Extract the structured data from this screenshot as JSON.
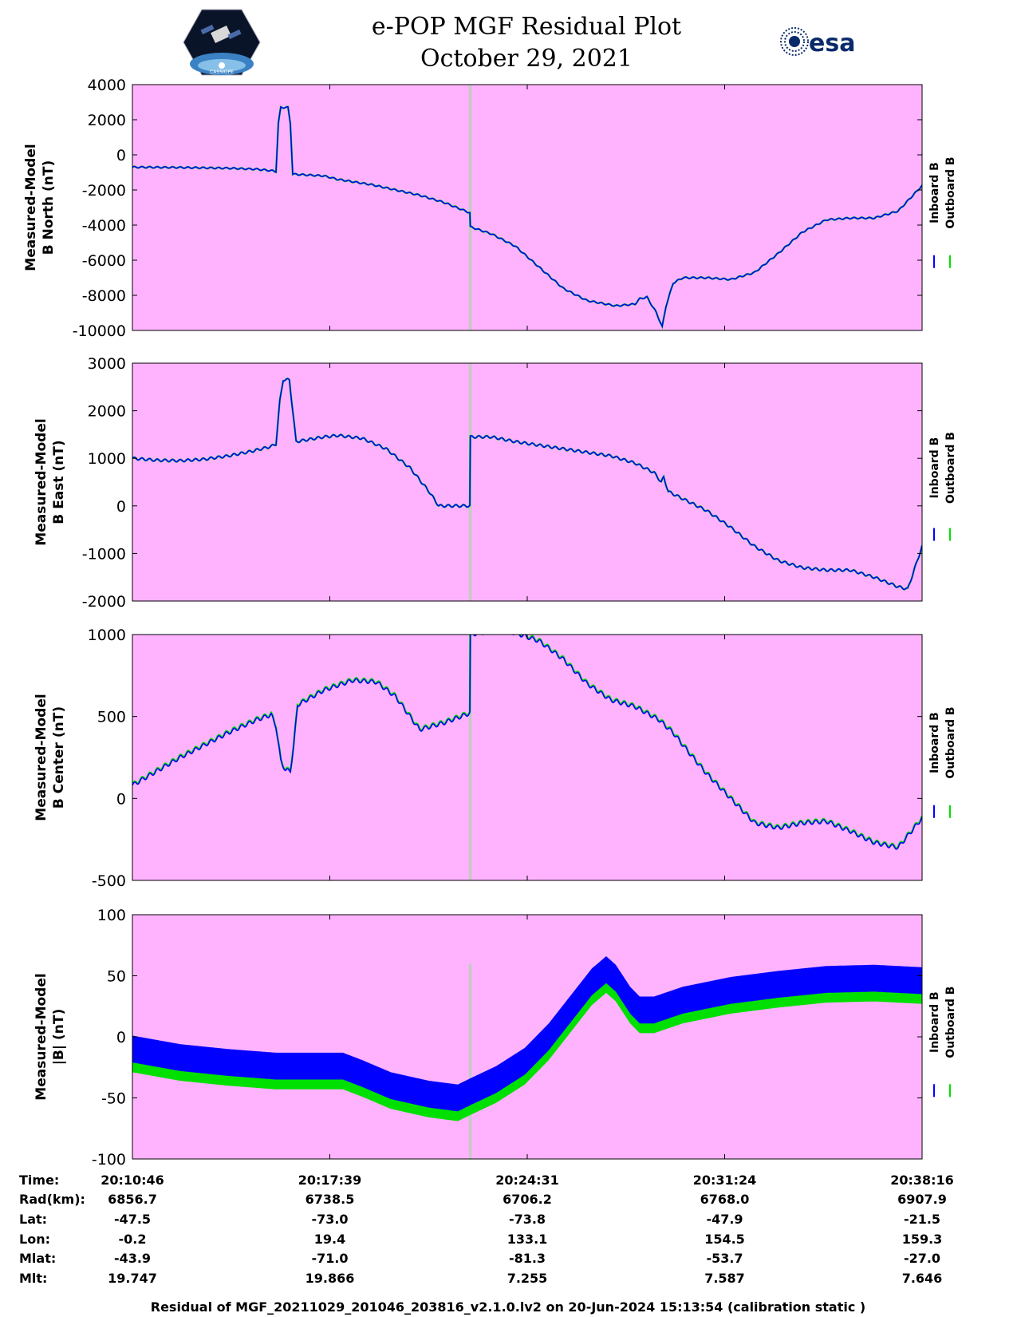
{
  "header": {
    "title_line1": "e-POP MGF Residual Plot",
    "title_line2": "October 29, 2021",
    "left_logo_text": "CASSIOPE",
    "right_logo_text": "esa"
  },
  "colors": {
    "background": "#ffb3ff",
    "inboard": "#0000ff",
    "outboard": "#00e000",
    "gap_line": "#c8c8c8"
  },
  "chart_data": {
    "type": "line",
    "x_tick_labels": [
      "20:10:46",
      "20:17:39",
      "20:24:31",
      "20:31:24",
      "20:38:16"
    ],
    "x_range": [
      0,
      1650
    ],
    "x_unit": "seconds after 20:10:46",
    "gap_at": 706,
    "legend": [
      "Inboard B",
      "Outboard B"
    ],
    "panels": [
      {
        "ylabel": [
          "Measured-Model",
          "B North (nT)"
        ],
        "ylim": [
          -10000,
          4000
        ],
        "yticks": [
          4000,
          2000,
          0,
          -2000,
          -4000,
          -6000,
          -8000,
          -10000
        ],
        "ripple": 40,
        "inboard": [
          [
            0,
            -700
          ],
          [
            100,
            -720
          ],
          [
            200,
            -760
          ],
          [
            260,
            -820
          ],
          [
            290,
            -900
          ],
          [
            300,
            -950
          ],
          [
            305,
            1800
          ],
          [
            310,
            2700
          ],
          [
            325,
            2700
          ],
          [
            330,
            1800
          ],
          [
            335,
            -1100
          ],
          [
            400,
            -1200
          ],
          [
            430,
            -1400
          ],
          [
            500,
            -1700
          ],
          [
            600,
            -2300
          ],
          [
            650,
            -2700
          ],
          [
            705,
            -3300
          ],
          [
            706,
            -4100
          ],
          [
            750,
            -4500
          ],
          [
            800,
            -5200
          ],
          [
            850,
            -6400
          ],
          [
            900,
            -7600
          ],
          [
            950,
            -8300
          ],
          [
            1010,
            -8600
          ],
          [
            1050,
            -8500
          ],
          [
            1060,
            -8200
          ],
          [
            1075,
            -8100
          ],
          [
            1095,
            -9000
          ],
          [
            1107,
            -9800
          ],
          [
            1115,
            -8600
          ],
          [
            1130,
            -7300
          ],
          [
            1150,
            -7000
          ],
          [
            1200,
            -7000
          ],
          [
            1250,
            -7100
          ],
          [
            1300,
            -6700
          ],
          [
            1350,
            -5600
          ],
          [
            1400,
            -4400
          ],
          [
            1450,
            -3700
          ],
          [
            1500,
            -3600
          ],
          [
            1550,
            -3600
          ],
          [
            1600,
            -3200
          ],
          [
            1650,
            -1750
          ]
        ],
        "outboard_offset": 0
      },
      {
        "ylabel": [
          "Measured-Model",
          "B East (nT)"
        ],
        "ylim": [
          -2000,
          3000
        ],
        "yticks": [
          3000,
          2000,
          1000,
          0,
          -1000,
          -2000
        ],
        "ripple": 25,
        "inboard": [
          [
            0,
            1000
          ],
          [
            50,
            960
          ],
          [
            100,
            950
          ],
          [
            150,
            980
          ],
          [
            200,
            1050
          ],
          [
            250,
            1150
          ],
          [
            290,
            1250
          ],
          [
            300,
            1300
          ],
          [
            308,
            2200
          ],
          [
            315,
            2650
          ],
          [
            328,
            2650
          ],
          [
            335,
            2000
          ],
          [
            342,
            1350
          ],
          [
            400,
            1450
          ],
          [
            430,
            1480
          ],
          [
            480,
            1420
          ],
          [
            530,
            1200
          ],
          [
            580,
            800
          ],
          [
            620,
            300
          ],
          [
            640,
            0
          ],
          [
            680,
            0
          ],
          [
            705,
            0
          ],
          [
            706,
            1450
          ],
          [
            750,
            1450
          ],
          [
            800,
            1350
          ],
          [
            900,
            1200
          ],
          [
            1000,
            1050
          ],
          [
            1050,
            900
          ],
          [
            1070,
            800
          ],
          [
            1090,
            700
          ],
          [
            1105,
            500
          ],
          [
            1110,
            600
          ],
          [
            1120,
            300
          ],
          [
            1150,
            150
          ],
          [
            1200,
            -100
          ],
          [
            1250,
            -450
          ],
          [
            1300,
            -850
          ],
          [
            1350,
            -1150
          ],
          [
            1400,
            -1300
          ],
          [
            1450,
            -1350
          ],
          [
            1500,
            -1350
          ],
          [
            1550,
            -1500
          ],
          [
            1600,
            -1700
          ],
          [
            1620,
            -1750
          ],
          [
            1650,
            -850
          ]
        ],
        "outboard_offset": 0
      },
      {
        "ylabel": [
          "Measured-Model",
          "B Center (nT)"
        ],
        "ylim": [
          -500,
          1000
        ],
        "yticks": [
          1000,
          500,
          0,
          -500
        ],
        "ripple": 12,
        "inboard": [
          [
            0,
            80
          ],
          [
            100,
            250
          ],
          [
            200,
            400
          ],
          [
            260,
            480
          ],
          [
            290,
            510
          ],
          [
            300,
            440
          ],
          [
            310,
            230
          ],
          [
            320,
            170
          ],
          [
            330,
            170
          ],
          [
            337,
            320
          ],
          [
            345,
            570
          ],
          [
            400,
            660
          ],
          [
            460,
            720
          ],
          [
            510,
            710
          ],
          [
            550,
            620
          ],
          [
            580,
            500
          ],
          [
            600,
            420
          ],
          [
            650,
            460
          ],
          [
            705,
            520
          ],
          [
            706,
            1000
          ],
          [
            750,
            1020
          ],
          [
            800,
            1010
          ],
          [
            850,
            960
          ],
          [
            900,
            850
          ],
          [
            950,
            700
          ],
          [
            1000,
            600
          ],
          [
            1050,
            560
          ],
          [
            1100,
            480
          ],
          [
            1130,
            400
          ],
          [
            1160,
            290
          ],
          [
            1200,
            150
          ],
          [
            1250,
            0
          ],
          [
            1300,
            -150
          ],
          [
            1350,
            -180
          ],
          [
            1400,
            -150
          ],
          [
            1450,
            -140
          ],
          [
            1500,
            -200
          ],
          [
            1550,
            -270
          ],
          [
            1600,
            -300
          ],
          [
            1650,
            -120
          ]
        ],
        "outboard_offset": 5
      },
      {
        "ylabel": [
          "Measured-Model",
          "|B| (nT)"
        ],
        "ylim": [
          -100,
          100
        ],
        "yticks": [
          100,
          50,
          0,
          -50,
          -100
        ],
        "band_inboard": 11,
        "band_outboard": 8,
        "inboard": [
          [
            0,
            -10
          ],
          [
            100,
            -17
          ],
          [
            200,
            -21
          ],
          [
            300,
            -24
          ],
          [
            350,
            -24
          ],
          [
            400,
            -24
          ],
          [
            440,
            -24
          ],
          [
            480,
            -30
          ],
          [
            540,
            -40
          ],
          [
            620,
            -47
          ],
          [
            680,
            -50
          ],
          [
            706,
            -45
          ],
          [
            760,
            -35
          ],
          [
            820,
            -20
          ],
          [
            870,
            0
          ],
          [
            920,
            25
          ],
          [
            960,
            45
          ],
          [
            990,
            55
          ],
          [
            1010,
            48
          ],
          [
            1040,
            30
          ],
          [
            1060,
            22
          ],
          [
            1090,
            22
          ],
          [
            1150,
            30
          ],
          [
            1250,
            38
          ],
          [
            1350,
            43
          ],
          [
            1450,
            47
          ],
          [
            1550,
            48
          ],
          [
            1650,
            46
          ]
        ],
        "outboard_offset": -11
      }
    ]
  },
  "ephemeris": {
    "labels": [
      "Time:",
      "Rad(km):",
      "Lat:",
      "Lon:",
      "Mlat:",
      "Mlt:"
    ],
    "columns": [
      [
        "20:10:46",
        "6856.7",
        "-47.5",
        "-0.2",
        "-43.9",
        "19.747"
      ],
      [
        "20:17:39",
        "6738.5",
        "-73.0",
        "19.4",
        "-71.0",
        "19.866"
      ],
      [
        "20:24:31",
        "6706.2",
        "-73.8",
        "133.1",
        "-81.3",
        "7.255"
      ],
      [
        "20:31:24",
        "6768.0",
        "-47.9",
        "154.5",
        "-53.7",
        "7.587"
      ],
      [
        "20:38:16",
        "6907.9",
        "-21.5",
        "159.3",
        "-27.0",
        "7.646"
      ]
    ]
  },
  "footer": "Residual of MGF_20211029_201046_203816_v2.1.0.lv2 on 20-Jun-2024 15:13:54 (calibration static )"
}
